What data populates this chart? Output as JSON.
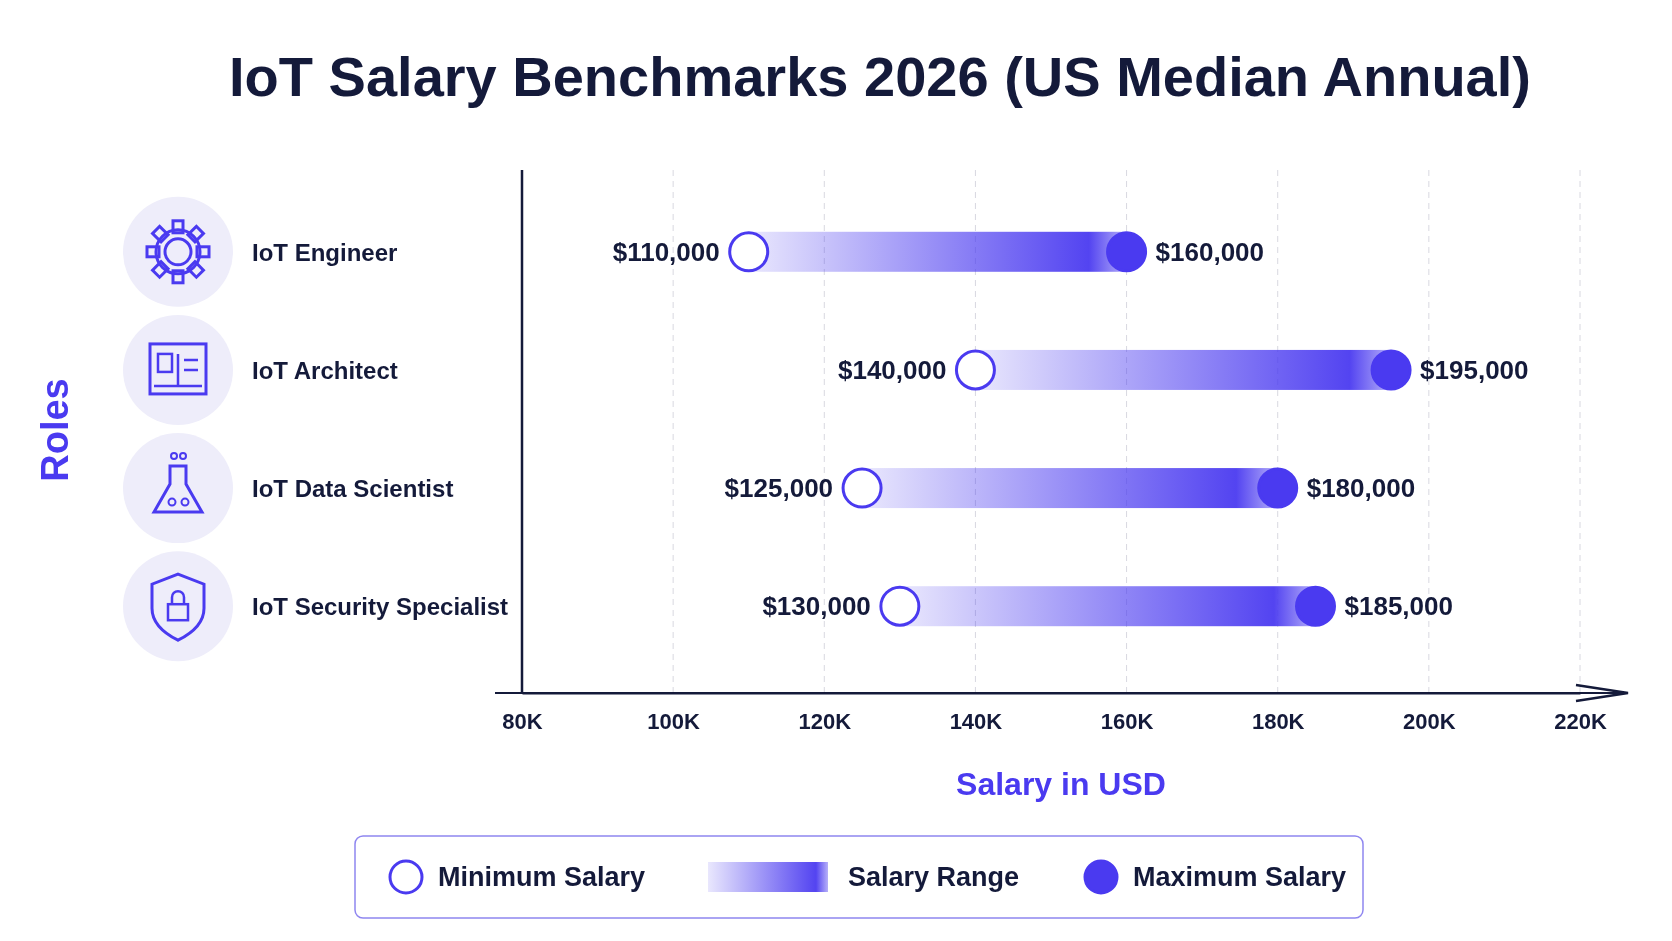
{
  "chart_data": {
    "type": "bar",
    "orientation": "horizontal",
    "title": "IoT Salary Benchmarks 2026 (US Median Annual)",
    "xlabel": "Salary in USD",
    "ylabel": "Roles",
    "categories": [
      "IoT Engineer",
      "IoT Architect",
      "IoT Data Scientist",
      "IoT Security Specialist"
    ],
    "series": [
      {
        "type": "bar",
        "name": "Salary Range",
        "color": "#4a3af0",
        "base": [
          110000,
          140000,
          125000,
          130000
        ],
        "values": [
          50000,
          55000,
          55000,
          55000
        ]
      },
      {
        "type": "scatter",
        "name": "Minimum Salary",
        "color": "#ffffff",
        "values": [
          110000,
          140000,
          125000,
          130000
        ],
        "value_labels": [
          "$110,000",
          "$140,000",
          "$125,000",
          "$130,000"
        ]
      },
      {
        "type": "scatter",
        "name": "Maximum Salary",
        "color": "#4a3af0",
        "values": [
          160000,
          195000,
          180000,
          185000
        ],
        "value_labels": [
          "$160,000",
          "$195,000",
          "$180,000",
          "$185,000"
        ]
      }
    ],
    "xlim": [
      80000,
      220000
    ],
    "xticks": [
      {
        "value": 80000,
        "label": "80K"
      },
      {
        "value": 100000,
        "label": "100K"
      },
      {
        "value": 120000,
        "label": "120K"
      },
      {
        "value": 140000,
        "label": "140K"
      },
      {
        "value": 160000,
        "label": "160K"
      },
      {
        "value": 180000,
        "label": "180K"
      },
      {
        "value": 200000,
        "label": "200K"
      },
      {
        "value": 220000,
        "label": "220K"
      }
    ],
    "grid": "x",
    "legend": "bottom",
    "marker": "circle"
  }
}
